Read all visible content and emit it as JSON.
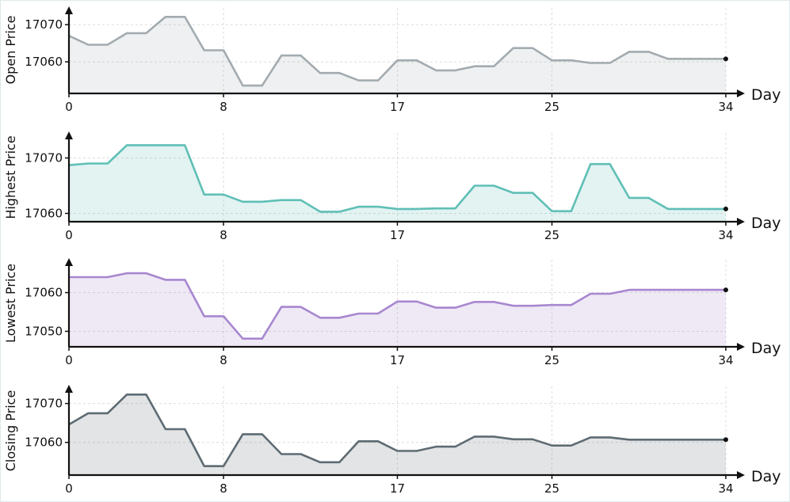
{
  "chart_data": [
    {
      "type": "area",
      "ylabel": "Open Price",
      "xlabel": "Day",
      "x_ticks": [
        0,
        8,
        17,
        25,
        34
      ],
      "y_ticks": [
        17060,
        17070
      ],
      "ylim": [
        17051.5,
        17074.5
      ],
      "xlim": [
        0,
        34
      ],
      "color": "#a3abb0",
      "values": [
        17067.0,
        17064.6,
        17064.6,
        17067.7,
        17067.7,
        17072.1,
        17072.1,
        17063.1,
        17063.1,
        17053.6,
        17053.6,
        17061.7,
        17061.7,
        17057.0,
        17057.0,
        17055.0,
        17055.0,
        17060.4,
        17060.4,
        17057.7,
        17057.7,
        17058.8,
        17058.8,
        17063.7,
        17063.7,
        17060.4,
        17060.4,
        17059.7,
        17059.7,
        17062.7,
        17062.7,
        17060.8,
        17060.8,
        17060.8,
        17060.8
      ]
    },
    {
      "type": "area",
      "ylabel": "Highest Price",
      "xlabel": "Day",
      "x_ticks": [
        0,
        8,
        17,
        25,
        34
      ],
      "y_ticks": [
        17060,
        17070
      ],
      "ylim": [
        17058.5,
        17074.5
      ],
      "xlim": [
        0,
        34
      ],
      "color": "#5fbfb6",
      "values": [
        17068.7,
        17069.0,
        17069.0,
        17072.3,
        17072.3,
        17072.3,
        17072.3,
        17063.4,
        17063.4,
        17062.1,
        17062.1,
        17062.4,
        17062.4,
        17060.3,
        17060.3,
        17061.2,
        17061.2,
        17060.8,
        17060.8,
        17060.9,
        17060.9,
        17065.0,
        17065.0,
        17063.7,
        17063.7,
        17060.4,
        17060.4,
        17068.9,
        17068.9,
        17062.8,
        17062.8,
        17060.8,
        17060.8,
        17060.8,
        17060.8
      ]
    },
    {
      "type": "area",
      "ylabel": "Lowest Price",
      "xlabel": "Day",
      "x_ticks": [
        0,
        8,
        17,
        25,
        34
      ],
      "y_ticks": [
        17050,
        17060
      ],
      "ylim": [
        17046.0,
        17068.5
      ],
      "xlim": [
        0,
        34
      ],
      "color": "#a887cf",
      "values": [
        17064.0,
        17064.0,
        17064.0,
        17065.0,
        17065.0,
        17063.3,
        17063.3,
        17053.9,
        17053.9,
        17048.1,
        17048.1,
        17056.3,
        17056.3,
        17053.5,
        17053.5,
        17054.6,
        17054.6,
        17057.7,
        17057.7,
        17056.1,
        17056.1,
        17057.6,
        17057.6,
        17056.6,
        17056.6,
        17056.8,
        17056.8,
        17059.7,
        17059.7,
        17060.7,
        17060.7,
        17060.7,
        17060.7,
        17060.7,
        17060.7
      ]
    },
    {
      "type": "area",
      "ylabel": "Closing Price",
      "xlabel": "Day",
      "x_ticks": [
        0,
        8,
        17,
        25,
        34
      ],
      "y_ticks": [
        17060,
        17070
      ],
      "ylim": [
        17051.6,
        17074.4
      ],
      "xlim": [
        0,
        34
      ],
      "color": "#5e6b73",
      "values": [
        17064.6,
        17067.5,
        17067.5,
        17072.3,
        17072.3,
        17063.4,
        17063.4,
        17053.9,
        17053.9,
        17062.1,
        17062.1,
        17057.0,
        17057.0,
        17054.9,
        17054.9,
        17060.3,
        17060.3,
        17057.8,
        17057.8,
        17058.9,
        17058.9,
        17061.5,
        17061.5,
        17060.8,
        17060.8,
        17059.2,
        17059.2,
        17061.3,
        17061.3,
        17060.7,
        17060.7,
        17060.7,
        17060.7,
        17060.7,
        17060.7
      ]
    }
  ]
}
